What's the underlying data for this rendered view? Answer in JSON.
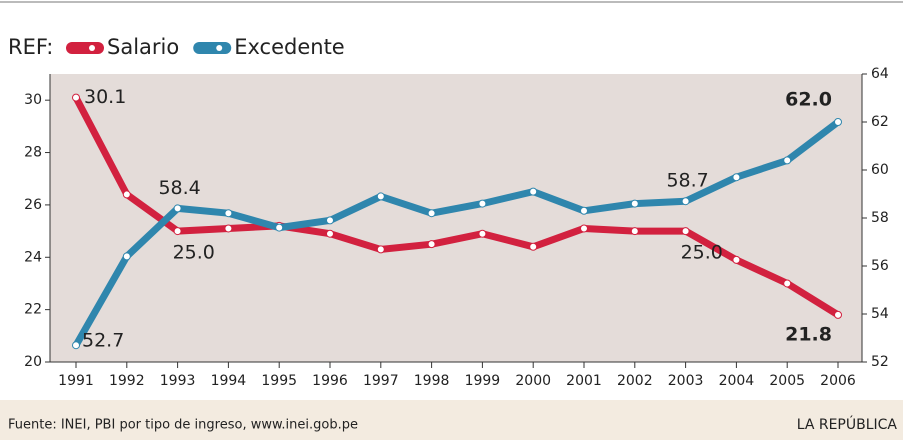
{
  "chart_data": {
    "type": "line",
    "legend_title": "REF:",
    "categories": [
      "1991",
      "1992",
      "1993",
      "1994",
      "1995",
      "1996",
      "1997",
      "1998",
      "1999",
      "2000",
      "2001",
      "2002",
      "2003",
      "2004",
      "2005",
      "2006"
    ],
    "series": [
      {
        "name": "Salario",
        "color": "#d2213f",
        "axis": "y",
        "values": [
          30.1,
          26.4,
          25.0,
          25.1,
          25.2,
          24.9,
          24.3,
          24.5,
          24.9,
          24.4,
          25.1,
          25.0,
          25.0,
          23.9,
          23.0,
          21.8
        ],
        "value_labels": [
          "30.1",
          null,
          "25.0",
          null,
          null,
          null,
          null,
          null,
          null,
          null,
          null,
          null,
          "25.0",
          null,
          null,
          "21.8"
        ]
      },
      {
        "name": "Excedente",
        "color": "#2f86ad",
        "axis": "y2",
        "values": [
          52.7,
          56.4,
          58.4,
          58.2,
          57.6,
          57.9,
          58.9,
          58.2,
          58.6,
          59.1,
          58.3,
          58.6,
          58.7,
          59.7,
          60.4,
          62.0
        ],
        "value_labels": [
          "52.7",
          null,
          "58.4",
          null,
          null,
          null,
          null,
          null,
          null,
          null,
          null,
          null,
          "58.7",
          null,
          null,
          "62.0"
        ]
      }
    ],
    "ylim": [
      20,
      31
    ],
    "yticks": [
      20,
      22,
      24,
      26,
      28,
      30
    ],
    "y2lim": [
      52,
      64
    ],
    "y2ticks": [
      52,
      54,
      56,
      58,
      60,
      62,
      64
    ],
    "source": "Fuente: INEI, PBI por tipo de ingreso, www.inei.gob.pe",
    "publisher": "LA REPÚBLICA"
  }
}
